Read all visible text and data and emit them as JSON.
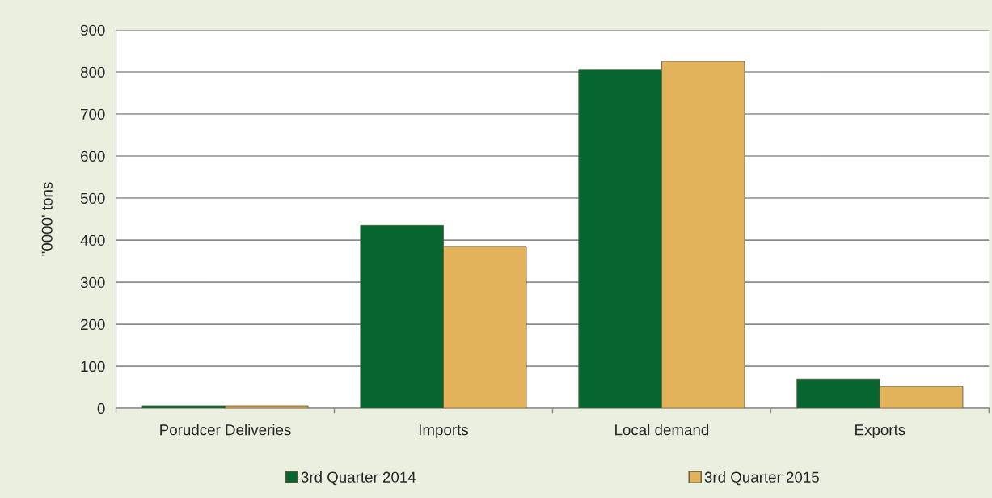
{
  "chart_data": {
    "type": "bar",
    "ylabel": "\"0000' tons",
    "categories": [
      "Porudcer Deliveries",
      "Imports",
      "Local demand",
      "Exports"
    ],
    "series": [
      {
        "name": "3rd Quarter 2014",
        "color": "#07652f",
        "values": [
          6,
          436,
          806,
          69
        ]
      },
      {
        "name": "3rd Quarter 2015",
        "color": "#e3b35c",
        "values": [
          6,
          385,
          825,
          52
        ]
      }
    ],
    "ylim": [
      0,
      900
    ],
    "yticks": [
      0,
      100,
      200,
      300,
      400,
      500,
      600,
      700,
      800,
      900
    ],
    "grid": "y",
    "legend": "bottom"
  }
}
